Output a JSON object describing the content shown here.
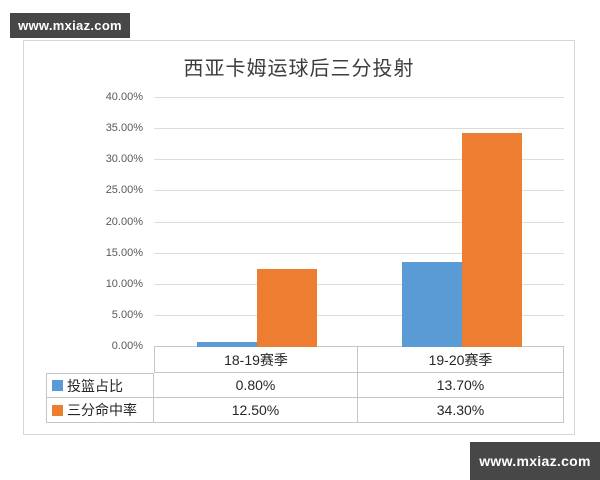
{
  "watermarks": {
    "top_left": "www.mxiaz.com",
    "bottom_right": "www.mxiaz.com"
  },
  "chart_data": {
    "type": "bar",
    "title": "西亚卡姆运球后三分投射",
    "categories": [
      "18-19赛季",
      "19-20赛季"
    ],
    "series": [
      {
        "name": "投篮占比",
        "color": "#5B9BD5",
        "values": [
          0.8,
          13.7
        ],
        "labels": [
          "0.80%",
          "13.70%"
        ]
      },
      {
        "name": "三分命中率",
        "color": "#ED7D31",
        "values": [
          12.5,
          34.3
        ],
        "labels": [
          "12.50%",
          "34.30%"
        ]
      }
    ],
    "xlabel": "",
    "ylabel": "",
    "ylim": [
      0,
      40
    ],
    "ytick_step": 5,
    "ytick_labels": [
      "0.00%",
      "5.00%",
      "10.00%",
      "15.00%",
      "20.00%",
      "25.00%",
      "30.00%",
      "35.00%",
      "40.00%"
    ],
    "grid": true,
    "legend_position": "table-left"
  }
}
